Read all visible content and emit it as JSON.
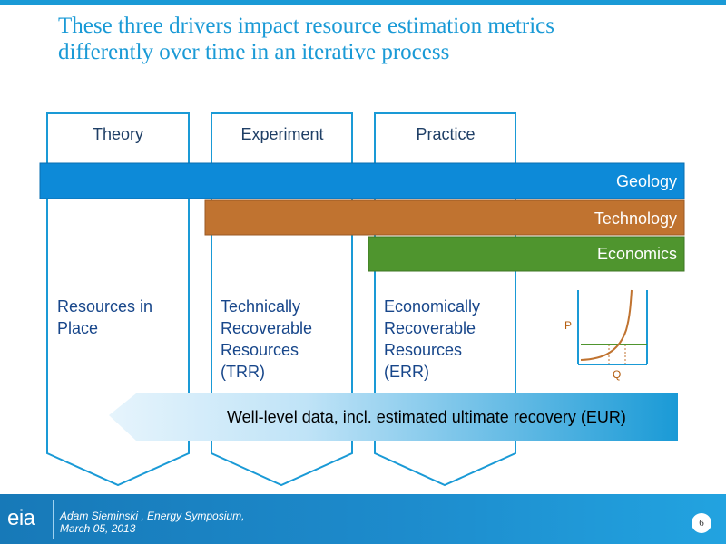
{
  "title": {
    "line1": "These three drivers impact resource estimation metrics",
    "line2": "differently over time in an iterative process"
  },
  "columns": [
    {
      "heading": "Theory",
      "body": [
        "Resources in",
        "Place"
      ]
    },
    {
      "heading": "Experiment",
      "body": [
        "Technically",
        "Recoverable",
        "Resources",
        "(TRR)"
      ]
    },
    {
      "heading": "Practice",
      "body": [
        "Economically",
        "Recoverable",
        "Resources",
        "(ERR)"
      ]
    }
  ],
  "drivers": [
    {
      "label": "Geology",
      "color": "#0d8ad8"
    },
    {
      "label": "Technology",
      "color": "#c07330"
    },
    {
      "label": "Economics",
      "color": "#4f952e"
    }
  ],
  "band": {
    "text": "Well-level data, incl. estimated ultimate recovery (EUR)",
    "color": "#1a9ad6"
  },
  "mini_chart": {
    "y_label": "P",
    "x_label": "Q",
    "curve_color": "#c07330",
    "line_color": "#4f952e",
    "axis_color": "#1a9ad6"
  },
  "footer": {
    "logo": "eia",
    "line1": "Adam Sieminski , Energy Symposium,",
    "line2": "March 05, 2013",
    "page": "6"
  }
}
